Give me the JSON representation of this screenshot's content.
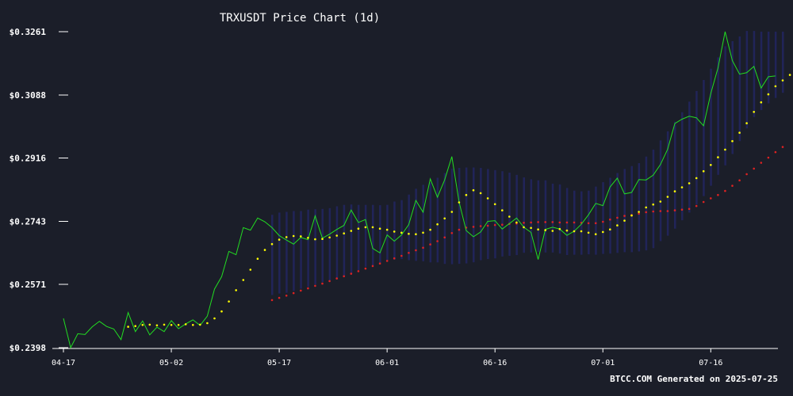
{
  "chart_data": {
    "type": "line",
    "title": "TRXUSDT Price Chart (1d)",
    "footer": "BTCC.COM Generated on 2025-07-25",
    "ylim": [
      0.2398,
      0.3261
    ],
    "y_ticks": [
      "$0.2398",
      "$0.2571",
      "$0.2743",
      "$0.2916",
      "$0.3088",
      "$0.3261"
    ],
    "y_tick_values": [
      0.2398,
      0.2571,
      0.2743,
      0.2916,
      0.3088,
      0.3261
    ],
    "x_ticks": [
      "04-17",
      "05-02",
      "05-17",
      "06-01",
      "06-16",
      "07-01",
      "07-16"
    ],
    "x_tick_days": [
      0,
      15,
      30,
      45,
      60,
      75,
      90
    ],
    "colors": {
      "background": "#1b1e29",
      "price": "#22dd22",
      "ma_short": "#ffff00",
      "ma_long": "#dd2222",
      "band": "#24276a",
      "axis": "#ffffff"
    },
    "series": [
      {
        "key": "price",
        "start_day": 0,
        "values": [
          0.2478,
          0.2398,
          0.2436,
          0.2434,
          0.2455,
          0.247,
          0.2456,
          0.2449,
          0.242,
          0.2494,
          0.2442,
          0.2471,
          0.2433,
          0.2454,
          0.2442,
          0.2472,
          0.245,
          0.2463,
          0.2474,
          0.2459,
          0.2484,
          0.2558,
          0.2592,
          0.2661,
          0.2652,
          0.2726,
          0.2719,
          0.2752,
          0.2742,
          0.2726,
          0.2704,
          0.2692,
          0.2681,
          0.2699,
          0.2693,
          0.2758,
          0.2697,
          0.2708,
          0.2721,
          0.2732,
          0.2774,
          0.274,
          0.2748,
          0.2669,
          0.2657,
          0.2706,
          0.2689,
          0.2706,
          0.2734,
          0.28,
          0.2768,
          0.2859,
          0.2809,
          0.2856,
          0.292,
          0.2796,
          0.2718,
          0.2701,
          0.2714,
          0.2743,
          0.2745,
          0.2722,
          0.2737,
          0.2752,
          0.2727,
          0.2713,
          0.2639,
          0.2721,
          0.2727,
          0.2722,
          0.2705,
          0.2716,
          0.2735,
          0.2761,
          0.2792,
          0.2786,
          0.2837,
          0.2861,
          0.2818,
          0.2822,
          0.2857,
          0.2856,
          0.2869,
          0.2898,
          0.294,
          0.301,
          0.3022,
          0.303,
          0.3026,
          0.3004,
          0.3092,
          0.3162,
          0.3261,
          0.3182,
          0.3145,
          0.3149,
          0.3166,
          0.3107,
          0.3138,
          0.314
        ]
      },
      {
        "key": "ma_short",
        "start_day": 9,
        "values": [
          0.2455,
          0.2457,
          0.246,
          0.2461,
          0.2459,
          0.2461,
          0.246,
          0.246,
          0.2462,
          0.246,
          0.2461,
          0.2465,
          0.2478,
          0.2497,
          0.2524,
          0.2555,
          0.2583,
          0.2611,
          0.2641,
          0.2665,
          0.2681,
          0.2693,
          0.27,
          0.2703,
          0.2702,
          0.2698,
          0.2694,
          0.2695,
          0.2699,
          0.2704,
          0.271,
          0.2717,
          0.2723,
          0.2727,
          0.2727,
          0.2723,
          0.272,
          0.2715,
          0.2712,
          0.2709,
          0.2708,
          0.2712,
          0.272,
          0.2735,
          0.2751,
          0.2769,
          0.2795,
          0.2815,
          0.2828,
          0.282,
          0.2806,
          0.279,
          0.2773,
          0.2756,
          0.274,
          0.2727,
          0.2725,
          0.2721,
          0.2719,
          0.2717,
          0.2722,
          0.2718,
          0.2716,
          0.2716,
          0.2712,
          0.2708,
          0.2714,
          0.2721,
          0.2732,
          0.2745,
          0.2759,
          0.2769,
          0.2781,
          0.2789,
          0.2797,
          0.281,
          0.2825,
          0.2836,
          0.2847,
          0.2861,
          0.288,
          0.2897,
          0.2918,
          0.2939,
          0.2962,
          0.2985,
          0.3011,
          0.3042,
          0.3068,
          0.309,
          0.3112,
          0.3128,
          0.3143,
          0.316,
          0.3161,
          0.3158,
          0.3151
        ]
      },
      {
        "key": "ma_long",
        "start_day": 29,
        "values": [
          0.2528,
          0.2534,
          0.254,
          0.2547,
          0.2554,
          0.256,
          0.2567,
          0.2573,
          0.258,
          0.2587,
          0.2593,
          0.26,
          0.2607,
          0.2614,
          0.2621,
          0.2628,
          0.2635,
          0.2642,
          0.2649,
          0.2657,
          0.2664,
          0.2671,
          0.268,
          0.2689,
          0.2699,
          0.2711,
          0.272,
          0.2726,
          0.2728,
          0.273,
          0.2731,
          0.2733,
          0.2734,
          0.2736,
          0.2737,
          0.2739,
          0.274,
          0.2741,
          0.2741,
          0.2741,
          0.274,
          0.274,
          0.274,
          0.2739,
          0.2738,
          0.2738,
          0.2742,
          0.2748,
          0.2753,
          0.2758,
          0.276,
          0.2764,
          0.2768,
          0.277,
          0.2771,
          0.2771,
          0.2773,
          0.2775,
          0.2777,
          0.2785,
          0.2796,
          0.2806,
          0.2815,
          0.2826,
          0.284,
          0.2855,
          0.2872,
          0.2887,
          0.2903,
          0.2917,
          0.2932,
          0.2946
        ]
      },
      {
        "key": "band_upper",
        "start_day": 29,
        "values": [
          0.2761,
          0.2767,
          0.2769,
          0.2771,
          0.2771,
          0.2775,
          0.2776,
          0.2777,
          0.2779,
          0.2784,
          0.2788,
          0.2789,
          0.2788,
          0.2788,
          0.2788,
          0.2787,
          0.2788,
          0.2797,
          0.2801,
          0.2816,
          0.2832,
          0.2843,
          0.2849,
          0.2862,
          0.2875,
          0.2887,
          0.2889,
          0.289,
          0.289,
          0.2889,
          0.2886,
          0.2883,
          0.288,
          0.2876,
          0.287,
          0.2863,
          0.2858,
          0.2855,
          0.2855,
          0.2846,
          0.2844,
          0.2834,
          0.2827,
          0.2825,
          0.2827,
          0.2838,
          0.285,
          0.2862,
          0.2875,
          0.2886,
          0.2894,
          0.2902,
          0.292,
          0.2939,
          0.2964,
          0.2989,
          0.3015,
          0.3041,
          0.307,
          0.3099,
          0.3129,
          0.316,
          0.3191,
          0.3221,
          0.3235,
          0.3248,
          0.3263,
          0.3263,
          0.3261,
          0.3261,
          0.3261,
          0.3261
        ]
      },
      {
        "key": "band_lower",
        "start_day": 29,
        "values": [
          0.2542,
          0.2546,
          0.2548,
          0.2553,
          0.2559,
          0.2564,
          0.257,
          0.2577,
          0.2582,
          0.2587,
          0.2593,
          0.26,
          0.261,
          0.2619,
          0.2623,
          0.2629,
          0.2637,
          0.2638,
          0.264,
          0.2637,
          0.2635,
          0.2634,
          0.2631,
          0.2631,
          0.2627,
          0.2626,
          0.2627,
          0.2628,
          0.2631,
          0.2637,
          0.264,
          0.2642,
          0.2647,
          0.2649,
          0.2651,
          0.2657,
          0.2658,
          0.266,
          0.2658,
          0.2658,
          0.2655,
          0.2651,
          0.2652,
          0.2652,
          0.2653,
          0.2652,
          0.2654,
          0.2655,
          0.2657,
          0.2659,
          0.2659,
          0.2661,
          0.2664,
          0.267,
          0.2689,
          0.2704,
          0.2723,
          0.2746,
          0.2767,
          0.2789,
          0.2812,
          0.284,
          0.287,
          0.2896,
          0.2927,
          0.2962,
          0.2997,
          0.3028,
          0.3047,
          0.3065,
          0.308,
          0.3094
        ]
      }
    ]
  }
}
